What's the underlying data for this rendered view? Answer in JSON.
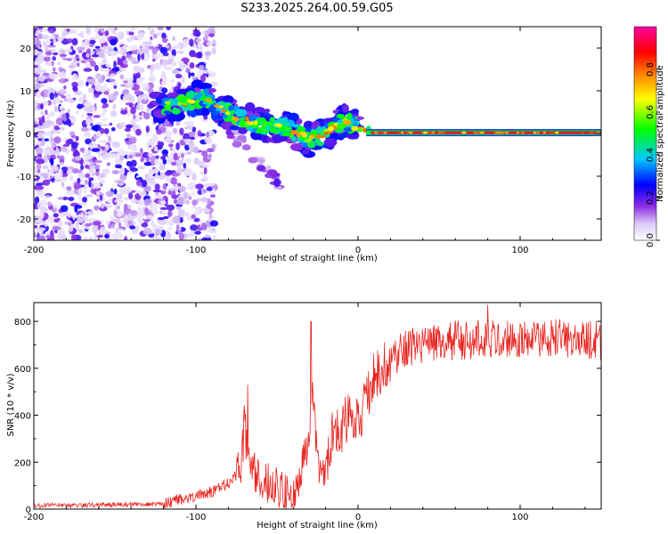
{
  "title": "S233.2025.264.00.59.G05",
  "chart_data": [
    {
      "type": "heatmap",
      "name": "spectrogram",
      "xlabel": "Height of straight line (km)",
      "ylabel": "Frequency (Hz)",
      "xlim": [
        -200,
        150
      ],
      "ylim": [
        -25,
        25
      ],
      "xticks": [
        -200,
        -100,
        0,
        100
      ],
      "yticks": [
        -20,
        -10,
        0,
        10,
        20
      ],
      "ridge_x": [
        -125,
        -115,
        -105,
        -95,
        -85,
        -75,
        -65,
        -55,
        -45,
        -35,
        -30,
        -25,
        -20,
        -15,
        -10,
        -5,
        0,
        5,
        10,
        20,
        40,
        60,
        80,
        100,
        120,
        150
      ],
      "ridge_y": [
        6.5,
        6.5,
        7.5,
        8.5,
        6,
        4,
        2.5,
        2,
        1.5,
        -0.5,
        -1.5,
        -1,
        0,
        1,
        2.5,
        2.5,
        1.5,
        0.8,
        0.3,
        0.2,
        0.2,
        0.2,
        0.2,
        0.2,
        0.2,
        0.2
      ],
      "colorbar": {
        "label": "Normalized spectral amplitude",
        "range": [
          0,
          1
        ],
        "ticks": [
          "0.0",
          "0.2",
          "0.4",
          "0.6",
          "0.8"
        ],
        "colors": [
          "#ffffff",
          "#d9c8f7",
          "#8a2be2",
          "#0000ff",
          "#00c8ff",
          "#00ff00",
          "#ffff00",
          "#ff8000",
          "#ff0000",
          "#ff00a0"
        ]
      }
    },
    {
      "type": "line",
      "name": "snr",
      "xlabel": "Height of straight line (km)",
      "ylabel": "SNR (10 * v/v)",
      "xlim": [
        -200,
        150
      ],
      "ylim": [
        0,
        880
      ],
      "xticks": [
        -200,
        -100,
        0,
        100
      ],
      "yticks": [
        0,
        200,
        400,
        600,
        800
      ],
      "color": "#e8231e",
      "trend_x": [
        -200,
        -150,
        -130,
        -120,
        -110,
        -100,
        -90,
        -80,
        -72,
        -70,
        -68,
        -65,
        -60,
        -55,
        -50,
        -45,
        -40,
        -35,
        -30,
        -28,
        -25,
        -20,
        -15,
        -10,
        -5,
        0,
        5,
        10,
        20,
        30,
        40,
        50,
        60,
        80,
        100,
        120,
        140,
        150
      ],
      "trend_y": [
        15,
        18,
        20,
        25,
        40,
        55,
        75,
        110,
        170,
        380,
        180,
        160,
        130,
        110,
        90,
        60,
        40,
        180,
        250,
        500,
        200,
        180,
        330,
        350,
        410,
        370,
        450,
        560,
        640,
        690,
        700,
        715,
        720,
        725,
        730,
        725,
        720,
        715
      ],
      "spikes": [
        {
          "x": -68,
          "y": 530
        },
        {
          "x": -29,
          "y": 800
        },
        {
          "x": 80,
          "y": 870
        }
      ]
    }
  ]
}
